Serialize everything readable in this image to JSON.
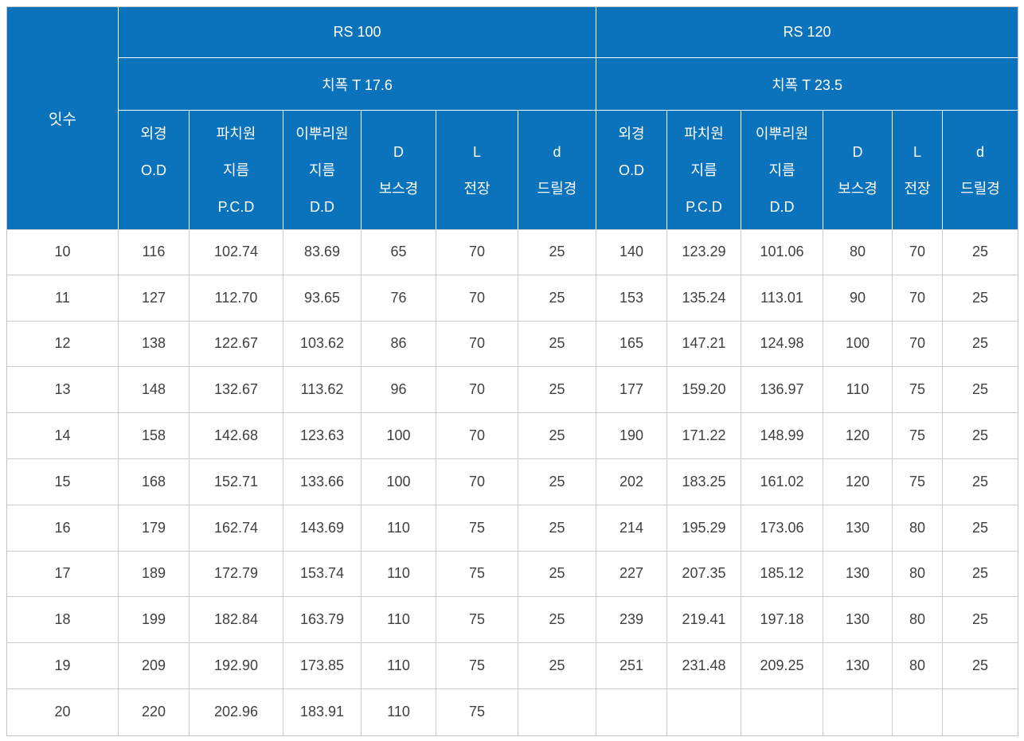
{
  "colors": {
    "header_bg": "#0b72bc",
    "header_text": "#ffffff",
    "body_text": "#3f3f3f",
    "grid_line": "#cccccc",
    "outer_border": "#c3c3c3"
  },
  "table": {
    "teeth_header": "잇수",
    "groups": [
      {
        "id": "rs100",
        "model": "RS 100",
        "tooth_width": "치폭 T 17.6"
      },
      {
        "id": "rs120",
        "model": "RS 120",
        "tooth_width": "치폭 T 23.5"
      }
    ],
    "sub_columns": [
      {
        "id": "od",
        "lines": [
          "외경",
          "O.D",
          ""
        ]
      },
      {
        "id": "pcd",
        "lines": [
          "파치원",
          "지름",
          "P.C.D"
        ]
      },
      {
        "id": "dd",
        "lines": [
          "이뿌리원",
          "지름",
          "D.D"
        ]
      },
      {
        "id": "boss",
        "lines": [
          "D",
          "보스경"
        ]
      },
      {
        "id": "length",
        "lines": [
          "L",
          "전장"
        ]
      },
      {
        "id": "drill",
        "lines": [
          "d",
          "드릴경"
        ]
      }
    ],
    "rows": [
      {
        "teeth": "10",
        "rs100": [
          "116",
          "102.74",
          "83.69",
          "65",
          "70",
          "25"
        ],
        "rs120": [
          "140",
          "123.29",
          "101.06",
          "80",
          "70",
          "25"
        ]
      },
      {
        "teeth": "11",
        "rs100": [
          "127",
          "112.70",
          "93.65",
          "76",
          "70",
          "25"
        ],
        "rs120": [
          "153",
          "135.24",
          "113.01",
          "90",
          "70",
          "25"
        ]
      },
      {
        "teeth": "12",
        "rs100": [
          "138",
          "122.67",
          "103.62",
          "86",
          "70",
          "25"
        ],
        "rs120": [
          "165",
          "147.21",
          "124.98",
          "100",
          "70",
          "25"
        ]
      },
      {
        "teeth": "13",
        "rs100": [
          "148",
          "132.67",
          "113.62",
          "96",
          "70",
          "25"
        ],
        "rs120": [
          "177",
          "159.20",
          "136.97",
          "110",
          "75",
          "25"
        ]
      },
      {
        "teeth": "14",
        "rs100": [
          "158",
          "142.68",
          "123.63",
          "100",
          "70",
          "25"
        ],
        "rs120": [
          "190",
          "171.22",
          "148.99",
          "120",
          "75",
          "25"
        ]
      },
      {
        "teeth": "15",
        "rs100": [
          "168",
          "152.71",
          "133.66",
          "100",
          "70",
          "25"
        ],
        "rs120": [
          "202",
          "183.25",
          "161.02",
          "120",
          "75",
          "25"
        ]
      },
      {
        "teeth": "16",
        "rs100": [
          "179",
          "162.74",
          "143.69",
          "110",
          "75",
          "25"
        ],
        "rs120": [
          "214",
          "195.29",
          "173.06",
          "130",
          "80",
          "25"
        ]
      },
      {
        "teeth": "17",
        "rs100": [
          "189",
          "172.79",
          "153.74",
          "110",
          "75",
          "25"
        ],
        "rs120": [
          "227",
          "207.35",
          "185.12",
          "130",
          "80",
          "25"
        ]
      },
      {
        "teeth": "18",
        "rs100": [
          "199",
          "182.84",
          "163.79",
          "110",
          "75",
          "25"
        ],
        "rs120": [
          "239",
          "219.41",
          "197.18",
          "130",
          "80",
          "25"
        ]
      },
      {
        "teeth": "19",
        "rs100": [
          "209",
          "192.90",
          "173.85",
          "110",
          "75",
          "25"
        ],
        "rs120": [
          "251",
          "231.48",
          "209.25",
          "130",
          "80",
          "25"
        ]
      },
      {
        "teeth": "20",
        "rs100": [
          "220",
          "202.96",
          "183.91",
          "110",
          "75",
          ""
        ],
        "rs120": [
          "",
          "",
          "",
          "",
          "",
          ""
        ]
      }
    ]
  }
}
